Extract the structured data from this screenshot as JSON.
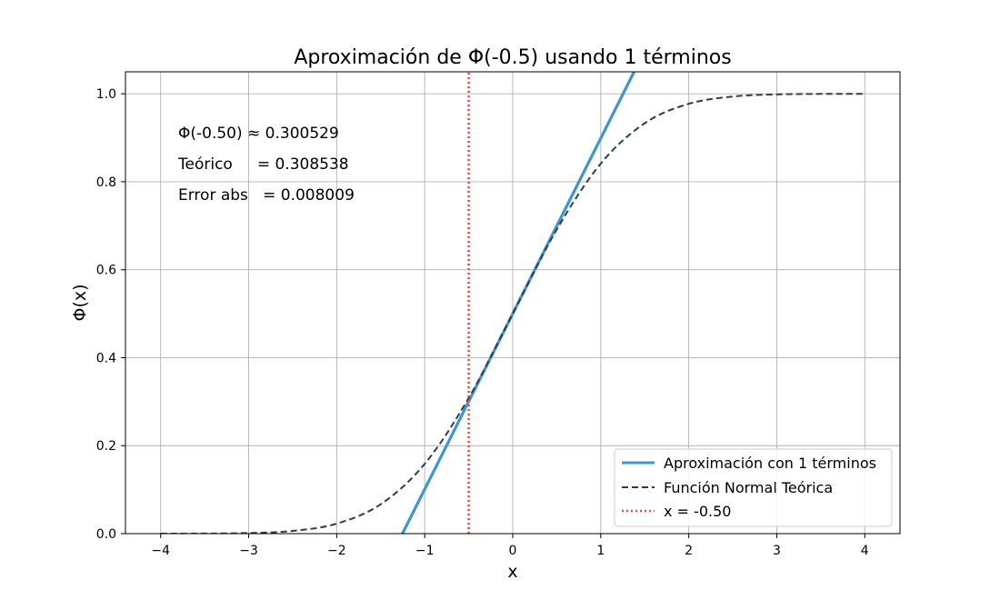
{
  "chart_data": {
    "type": "line",
    "title": "Aproximación de Φ(-0.5) usando 1 términos",
    "xlabel": "x",
    "ylabel": "Φ(x)",
    "xlim": [
      -4.4,
      4.4
    ],
    "ylim": [
      0.0,
      1.05
    ],
    "xticks": [
      -4,
      -3,
      -2,
      -1,
      0,
      1,
      2,
      3,
      4
    ],
    "xtick_labels": [
      "−4",
      "−3",
      "−2",
      "−1",
      "0",
      "1",
      "2",
      "3",
      "4"
    ],
    "yticks": [
      0.0,
      0.2,
      0.4,
      0.6,
      0.8,
      1.0
    ],
    "ytick_labels": [
      "0.0",
      "0.2",
      "0.4",
      "0.6",
      "0.8",
      "1.0"
    ],
    "grid": true,
    "legend_position": "bottom-right",
    "annotations": [
      "Φ(-0.50) ≈ 0.300529",
      "Teórico     = 0.308538",
      "Error abs   = 0.008009"
    ],
    "series": [
      {
        "name": "Aproximación con 1 términos",
        "style": "solid",
        "color": "#3a96d6",
        "x": [
          -1.2533,
          1.3786
        ],
        "y": [
          0.0,
          1.05
        ]
      },
      {
        "name": "Función Normal Teórica",
        "style": "dashed",
        "color": "#2c3e50",
        "x": [
          -4.0,
          -3.5,
          -3.0,
          -2.5,
          -2.0,
          -1.5,
          -1.0,
          -0.5,
          0.0,
          0.5,
          1.0,
          1.5,
          2.0,
          2.5,
          3.0,
          3.5,
          4.0
        ],
        "y": [
          3e-05,
          0.00023,
          0.00135,
          0.00621,
          0.02275,
          0.06681,
          0.15866,
          0.30854,
          0.5,
          0.69146,
          0.84134,
          0.93319,
          0.97725,
          0.99379,
          0.99865,
          0.99977,
          0.99997
        ]
      },
      {
        "name": "x = -0.50",
        "style": "dotted",
        "color": "#e74c3c",
        "x": [
          -0.5,
          -0.5
        ],
        "y": [
          0.0,
          1.05
        ]
      }
    ]
  }
}
